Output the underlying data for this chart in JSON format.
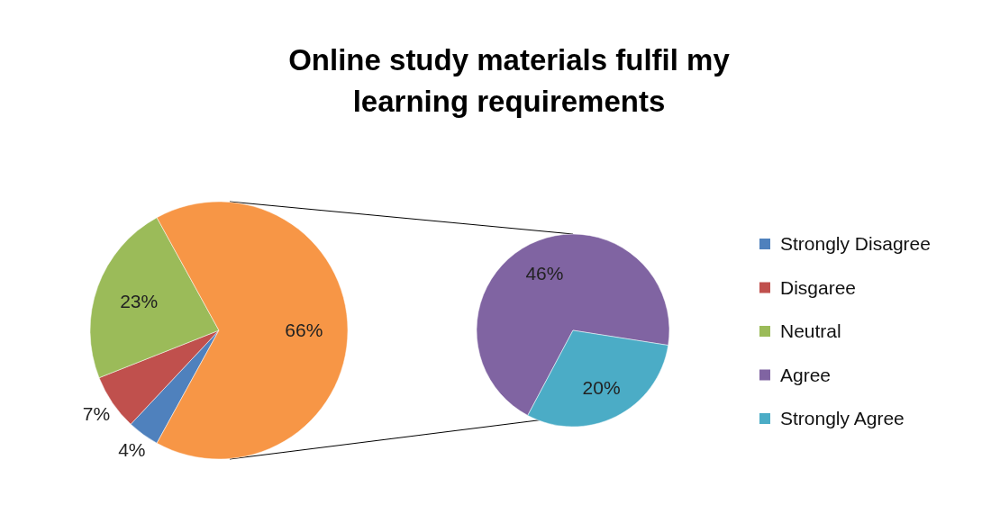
{
  "chart_data": [
    {
      "type": "pie",
      "title": "Online study materials fulfil my learning requirements",
      "categories": [
        "Strongly Disagree",
        "Disgaree",
        "Neutral",
        null
      ],
      "values": [
        4,
        7,
        23,
        66
      ],
      "colors": [
        "#4f81bd",
        "#c0504d",
        "#9bbb59",
        "#f79646"
      ],
      "value_labels": [
        "4%",
        "7%",
        "23%",
        "66%"
      ],
      "legend": "right"
    },
    {
      "type": "pie",
      "categories": [
        "Agree",
        "Strongly Agree"
      ],
      "values": [
        46,
        20
      ],
      "colors": [
        "#8064a2",
        "#4bacc6"
      ],
      "value_labels": [
        "46%",
        "20%"
      ],
      "legend": "right"
    }
  ]
}
